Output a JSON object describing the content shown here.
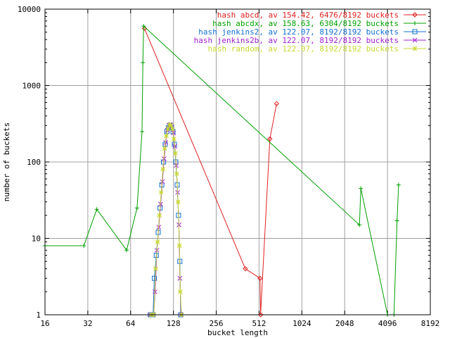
{
  "chart_data": {
    "type": "line",
    "title": "",
    "xlabel": "bucket length",
    "ylabel": "number of buckets",
    "x_scale": "log2",
    "y_scale": "log10",
    "xlim": [
      16,
      8192
    ],
    "ylim": [
      1,
      10000
    ],
    "x_ticks": [
      16,
      32,
      64,
      128,
      256,
      512,
      1024,
      2048,
      4096,
      8192
    ],
    "x_tick_labels": [
      "16",
      "32",
      "64",
      "128",
      "256",
      "512",
      "1024",
      "2048",
      "4096",
      "8192"
    ],
    "y_ticks": [
      1,
      10,
      100,
      1000,
      10000
    ],
    "y_tick_labels": [
      "1",
      "10",
      "100",
      "1000",
      "10000"
    ],
    "grid": true,
    "legend_position": "top-right",
    "series": [
      {
        "name": "hash abcd, av 154.42, 6476/8192 buckets",
        "color": "#e02020",
        "marker": "diamond",
        "points": [
          [
            80,
            5600
          ],
          [
            410,
            4
          ],
          [
            520,
            3
          ],
          [
            525,
            1
          ],
          [
            610,
            200
          ],
          [
            680,
            580
          ]
        ]
      },
      {
        "name": "hash abcdx, av 158.63, 6304/8192 buckets",
        "color": "#00a000",
        "marker": "plus",
        "points": [
          [
            16,
            8
          ],
          [
            30,
            8
          ],
          [
            37,
            24
          ],
          [
            60,
            7
          ],
          [
            71,
            25
          ],
          [
            77,
            250
          ],
          [
            78,
            2000
          ],
          [
            79,
            6000
          ],
          [
            2600,
            15
          ],
          [
            2660,
            45
          ],
          [
            4096,
            1
          ],
          [
            4550,
            1
          ],
          [
            4780,
            17
          ],
          [
            4900,
            50
          ]
        ]
      },
      {
        "name": "hash jenkins2, av 122.07, 8192/8192 buckets",
        "color": "#1070d0",
        "marker": "square",
        "points": [
          [
            88,
            1
          ],
          [
            92,
            1
          ],
          [
            94,
            3
          ],
          [
            97,
            6
          ],
          [
            100,
            12
          ],
          [
            103,
            25
          ],
          [
            106,
            50
          ],
          [
            109,
            100
          ],
          [
            112,
            170
          ],
          [
            115,
            250
          ],
          [
            118,
            280
          ],
          [
            121,
            300
          ],
          [
            124,
            280
          ],
          [
            127,
            250
          ],
          [
            130,
            170
          ],
          [
            133,
            100
          ],
          [
            136,
            50
          ],
          [
            139,
            20
          ],
          [
            142,
            5
          ],
          [
            144,
            1
          ]
        ]
      },
      {
        "name": "hash jenkins2b, av 122.07, 8192/8192 buckets",
        "color": "#a020d0",
        "marker": "x",
        "points": [
          [
            88,
            1
          ],
          [
            93,
            1
          ],
          [
            95,
            2
          ],
          [
            98,
            7
          ],
          [
            101,
            14
          ],
          [
            104,
            28
          ],
          [
            107,
            55
          ],
          [
            110,
            110
          ],
          [
            113,
            180
          ],
          [
            116,
            260
          ],
          [
            119,
            300
          ],
          [
            122,
            310
          ],
          [
            125,
            290
          ],
          [
            128,
            240
          ],
          [
            131,
            160
          ],
          [
            134,
            90
          ],
          [
            137,
            40
          ],
          [
            140,
            15
          ],
          [
            142,
            3
          ],
          [
            145,
            1
          ]
        ]
      },
      {
        "name": "hash random, av 122.07, 8192/8192 buckets",
        "color": "#c8d830",
        "marker": "star",
        "points": [
          [
            89,
            1
          ],
          [
            93,
            1
          ],
          [
            96,
            4
          ],
          [
            99,
            9
          ],
          [
            102,
            20
          ],
          [
            105,
            40
          ],
          [
            108,
            80
          ],
          [
            111,
            150
          ],
          [
            114,
            220
          ],
          [
            117,
            270
          ],
          [
            120,
            310
          ],
          [
            123,
            300
          ],
          [
            126,
            270
          ],
          [
            129,
            200
          ],
          [
            132,
            130
          ],
          [
            135,
            70
          ],
          [
            138,
            30
          ],
          [
            141,
            8
          ],
          [
            143,
            2
          ],
          [
            146,
            1
          ]
        ]
      }
    ]
  }
}
